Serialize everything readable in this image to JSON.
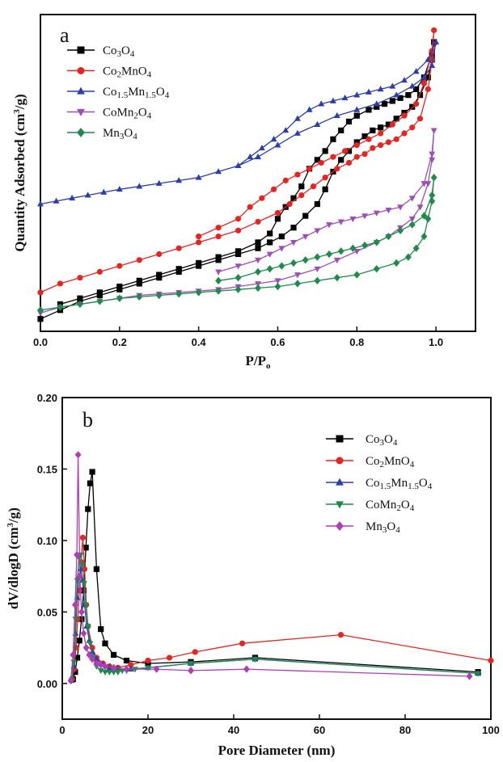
{
  "chart_data": [
    {
      "type": "line",
      "panel_label": "a",
      "xlabel": "P/P",
      "xlabel_sub": "o",
      "ylabel": "Quantity  Adsorbed (cm",
      "ylabel_sup": "3",
      "ylabel_end": "/g)",
      "xlim": [
        0,
        1.1
      ],
      "ylim": [
        0,
        100
      ],
      "y_ticks_shown": false,
      "x_ticks": [
        "0.0",
        "0.2",
        "0.4",
        "0.6",
        "0.8",
        "1.0"
      ],
      "legend_position": "top-left",
      "series": [
        {
          "name": "Co3O4",
          "color": "#000000",
          "marker": "square",
          "x": [
            0,
            0.05,
            0.1,
            0.15,
            0.2,
            0.25,
            0.3,
            0.35,
            0.4,
            0.45,
            0.5,
            0.55,
            0.58,
            0.61,
            0.64,
            0.67,
            0.7,
            0.72,
            0.74,
            0.76,
            0.78,
            0.8,
            0.82,
            0.84,
            0.86,
            0.88,
            0.9,
            0.92,
            0.94,
            0.96,
            0.98,
            0.99,
            0.995,
            0.99,
            0.97,
            0.95,
            0.93,
            0.91,
            0.89,
            0.87,
            0.85,
            0.83,
            0.8,
            0.78,
            0.76,
            0.74,
            0.72,
            0.7,
            0.68,
            0.66,
            0.64,
            0.62,
            0.6,
            0.58,
            0.55,
            0.5,
            0.45,
            0.4,
            0.35,
            0.3,
            0.25,
            0.2,
            0.15,
            0.1,
            0.05
          ],
          "y": [
            2,
            5,
            8,
            10,
            12,
            14,
            16,
            18,
            20,
            22,
            24,
            26,
            28,
            30,
            33,
            37,
            41,
            46,
            52,
            56,
            59,
            62,
            64,
            66,
            67,
            68,
            70,
            72,
            74,
            78,
            84,
            90,
            96,
            92,
            84,
            80,
            78,
            77,
            76,
            75,
            74,
            73,
            71,
            69,
            66,
            63,
            59,
            56,
            53,
            47,
            43,
            40,
            36,
            31,
            28,
            25,
            23,
            21,
            19,
            17,
            15,
            13,
            11,
            9,
            7
          ]
        },
        {
          "name": "Co2MnO4",
          "color": "#e52521",
          "marker": "circle",
          "x": [
            0,
            0.05,
            0.1,
            0.15,
            0.2,
            0.25,
            0.3,
            0.35,
            0.4,
            0.45,
            0.5,
            0.55,
            0.6,
            0.63,
            0.66,
            0.69,
            0.72,
            0.75,
            0.78,
            0.8,
            0.82,
            0.84,
            0.86,
            0.88,
            0.9,
            0.92,
            0.94,
            0.96,
            0.98,
            0.99,
            0.995,
            0.99,
            0.97,
            0.95,
            0.92,
            0.89,
            0.86,
            0.83,
            0.8,
            0.77,
            0.74,
            0.71,
            0.68,
            0.65,
            0.62,
            0.59,
            0.56,
            0.53,
            0.5,
            0.45,
            0.4
          ],
          "y": [
            11,
            14,
            16,
            18,
            20,
            22,
            24,
            26,
            28,
            30,
            32,
            35,
            38,
            41,
            44,
            47,
            50,
            53,
            55,
            57,
            58,
            60,
            61,
            62,
            63,
            65,
            67,
            70,
            80,
            90,
            100,
            93,
            82,
            75,
            71,
            68,
            65,
            63,
            61,
            59,
            57,
            55,
            53,
            51,
            49,
            46,
            43,
            40,
            36,
            33,
            30
          ]
        },
        {
          "name": "Co1.5Mn1.5O4",
          "color": "#2d3ea8",
          "marker": "triangle-up",
          "x": [
            0,
            0.04,
            0.08,
            0.12,
            0.16,
            0.2,
            0.25,
            0.3,
            0.35,
            0.4,
            0.45,
            0.5,
            0.55,
            0.6,
            0.65,
            0.7,
            0.75,
            0.8,
            0.85,
            0.9,
            0.94,
            0.97,
            0.99,
            1.0,
            0.98,
            0.95,
            0.92,
            0.89,
            0.86,
            0.83,
            0.8,
            0.77,
            0.74,
            0.71,
            0.68,
            0.65,
            0.62,
            0.59,
            0.56,
            0.53,
            0.5
          ],
          "y": [
            41,
            42,
            43,
            44,
            45,
            46,
            47,
            48,
            49,
            50,
            52,
            54,
            57,
            61,
            65,
            68,
            71,
            73,
            75,
            78,
            81,
            84,
            88,
            96,
            90,
            86,
            83,
            81,
            80,
            79,
            78,
            77,
            76,
            75,
            73,
            70,
            66,
            63,
            60,
            57,
            54
          ]
        },
        {
          "name": "CoMn2O4",
          "color": "#9b4fb5",
          "marker": "triangle-down",
          "x": [
            0,
            0.05,
            0.1,
            0.15,
            0.2,
            0.25,
            0.3,
            0.35,
            0.4,
            0.45,
            0.5,
            0.55,
            0.6,
            0.65,
            0.7,
            0.75,
            0.8,
            0.85,
            0.88,
            0.91,
            0.94,
            0.96,
            0.98,
            0.99,
            0.995,
            0.99,
            0.97,
            0.94,
            0.91,
            0.88,
            0.85,
            0.82,
            0.79,
            0.76,
            0.73,
            0.7,
            0.67,
            0.64,
            0.61,
            0.58,
            0.55,
            0.5,
            0.45
          ],
          "y": [
            4,
            6,
            7,
            8,
            9,
            10,
            10.5,
            11,
            11.5,
            12,
            13,
            14,
            15,
            17,
            19,
            22,
            25,
            28,
            30,
            33,
            36,
            40,
            48,
            56,
            66,
            58,
            48,
            43,
            40,
            39,
            38,
            37,
            36,
            35,
            34,
            32,
            30,
            28,
            26,
            24,
            22,
            20,
            18
          ]
        },
        {
          "name": "Mn3O4",
          "color": "#1f8a4c",
          "marker": "diamond",
          "x": [
            0,
            0.05,
            0.1,
            0.15,
            0.2,
            0.25,
            0.3,
            0.35,
            0.4,
            0.45,
            0.5,
            0.55,
            0.6,
            0.65,
            0.7,
            0.75,
            0.8,
            0.85,
            0.9,
            0.93,
            0.95,
            0.97,
            0.98,
            0.99,
            0.995,
            0.99,
            0.97,
            0.94,
            0.91,
            0.88,
            0.85,
            0.82,
            0.79,
            0.76,
            0.73,
            0.7,
            0.67,
            0.64,
            0.61,
            0.58,
            0.55,
            0.5,
            0.45
          ],
          "y": [
            5,
            6,
            7,
            8,
            9,
            9.5,
            10,
            10.5,
            11,
            11.5,
            12,
            12.5,
            13,
            14,
            15,
            16,
            17,
            19,
            21,
            23,
            26,
            30,
            36,
            42,
            50,
            44,
            37,
            34,
            32,
            30,
            28,
            27,
            26,
            25,
            24,
            23,
            22,
            21,
            20,
            19,
            18,
            16,
            15
          ]
        }
      ]
    },
    {
      "type": "line",
      "panel_label": "b",
      "xlabel": "Pore Diameter (nm)",
      "ylabel": "dV/dlogD (cm",
      "ylabel_sup": "3",
      "ylabel_end": "/g)",
      "xlim": [
        0,
        100
      ],
      "ylim": [
        -0.025,
        0.2
      ],
      "x_ticks": [
        "0",
        "20",
        "40",
        "60",
        "80",
        "100"
      ],
      "y_ticks": [
        "0.00",
        "0.05",
        "0.10",
        "0.15",
        "0.20"
      ],
      "legend_position": "top-right",
      "series": [
        {
          "name": "Co3O4",
          "color": "#000000",
          "marker": "square",
          "x": [
            2.5,
            3,
            3.5,
            4,
            4.5,
            5,
            5.5,
            6,
            6.5,
            7,
            8,
            9,
            10,
            12,
            15,
            20,
            30,
            45,
            97
          ],
          "y": [
            0.003,
            0.008,
            0.018,
            0.03,
            0.045,
            0.065,
            0.095,
            0.122,
            0.14,
            0.148,
            0.08,
            0.038,
            0.028,
            0.02,
            0.016,
            0.014,
            0.015,
            0.018,
            0.008
          ]
        },
        {
          "name": "Co2MnO4",
          "color": "#e52521",
          "marker": "circle",
          "x": [
            2.3,
            2.8,
            3.2,
            3.6,
            4.0,
            4.4,
            4.8,
            5.2,
            5.6,
            6,
            7,
            8,
            9.5,
            11,
            13,
            16,
            20,
            25,
            31,
            42,
            65,
            100
          ],
          "y": [
            0.003,
            0.01,
            0.025,
            0.045,
            0.065,
            0.085,
            0.102,
            0.08,
            0.055,
            0.04,
            0.025,
            0.018,
            0.014,
            0.012,
            0.011,
            0.013,
            0.016,
            0.018,
            0.022,
            0.028,
            0.034,
            0.016
          ]
        },
        {
          "name": "Co1.5Mn1.5O4",
          "color": "#2d3ea8",
          "marker": "triangle-up",
          "x": [
            2.2,
            2.7,
            3.1,
            3.5,
            3.9,
            4.3,
            4.7,
            5.2,
            5.7,
            6.3,
            7,
            8,
            9.5,
            11,
            13,
            16,
            20,
            30,
            45,
            97
          ],
          "y": [
            0.002,
            0.012,
            0.035,
            0.06,
            0.075,
            0.08,
            0.072,
            0.055,
            0.04,
            0.03,
            0.022,
            0.017,
            0.013,
            0.011,
            0.01,
            0.01,
            0.011,
            0.014,
            0.017,
            0.007
          ]
        },
        {
          "name": "CoMn2O4",
          "color": "#1f8a4c",
          "marker": "triangle-down",
          "x": [
            2.2,
            2.7,
            3.1,
            3.5,
            3.9,
            4.3,
            4.7,
            5.1,
            5.5,
            6,
            6.5,
            7.2,
            8,
            9,
            10,
            11,
            12,
            13,
            14,
            15,
            17,
            20,
            30,
            45,
            97
          ],
          "y": [
            0.002,
            0.015,
            0.045,
            0.072,
            0.088,
            0.09,
            0.083,
            0.07,
            0.055,
            0.04,
            0.028,
            0.018,
            0.012,
            0.009,
            0.008,
            0.008,
            0.008,
            0.008,
            0.009,
            0.009,
            0.01,
            0.011,
            0.014,
            0.017,
            0.007
          ]
        },
        {
          "name": "Mn3O4",
          "color": "#b03cb8",
          "marker": "diamond",
          "x": [
            2,
            2.5,
            3,
            3.4,
            3.7,
            4.1,
            4.5,
            5,
            5.6,
            6.3,
            7,
            8,
            9,
            10,
            12,
            15,
            22,
            30,
            43,
            95
          ],
          "y": [
            0.002,
            0.02,
            0.055,
            0.09,
            0.16,
            0.075,
            0.05,
            0.035,
            0.025,
            0.02,
            0.017,
            0.014,
            0.013,
            0.012,
            0.011,
            0.01,
            0.01,
            0.009,
            0.01,
            0.005
          ]
        }
      ]
    }
  ]
}
